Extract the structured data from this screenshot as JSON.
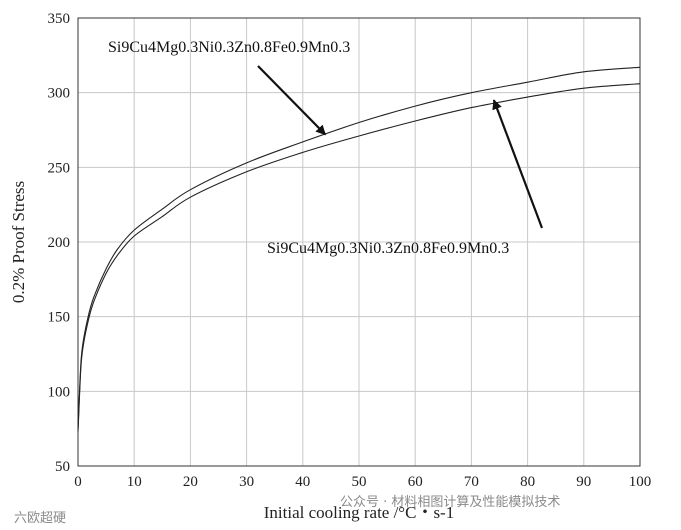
{
  "chart_data": {
    "type": "line",
    "xlabel": "Initial cooling rate /°C・s-1",
    "ylabel": "0.2% Proof Stress",
    "xlim": [
      0,
      100
    ],
    "ylim": [
      50,
      350
    ],
    "xticks": [
      0,
      10,
      20,
      30,
      40,
      50,
      60,
      70,
      80,
      90,
      100
    ],
    "yticks": [
      50,
      100,
      150,
      200,
      250,
      300,
      350
    ],
    "grid": true,
    "series": [
      {
        "name": "Si9Cu4Mg0.3Ni0.3Zn0.8Fe0.9Mn0.3",
        "x": [
          0,
          0.5,
          1,
          2,
          3,
          5,
          7,
          10,
          15,
          20,
          30,
          40,
          50,
          60,
          70,
          80,
          90,
          100
        ],
        "y": [
          75,
          118,
          135,
          153,
          165,
          182,
          195,
          208,
          222,
          235,
          253,
          267,
          280,
          291,
          300,
          307,
          314,
          317
        ]
      },
      {
        "name": "Si9Cu4Mg0.3Ni0.3Zn0.8Fe0.9Mn0.3",
        "x": [
          0,
          0.5,
          1,
          2,
          3,
          5,
          7,
          10,
          15,
          20,
          30,
          40,
          50,
          60,
          70,
          80,
          90,
          100
        ],
        "y": [
          73,
          115,
          132,
          150,
          162,
          179,
          191,
          204,
          217,
          230,
          247,
          260,
          271,
          281,
          290,
          297,
          303,
          306
        ]
      }
    ],
    "annotations": [
      {
        "text": "Si9Cu4Mg0.3Ni0.3Zn0.8Fe0.9Mn0.3",
        "points_to": [
          44,
          272
        ]
      },
      {
        "text": "Si9Cu4Mg0.3Ni0.3Zn0.8Fe0.9Mn0.3",
        "points_to": [
          74,
          295
        ]
      }
    ]
  },
  "watermark": {
    "left": "六欧超硬",
    "right": "公众号 · 材料相图计算及性能模拟技术"
  }
}
